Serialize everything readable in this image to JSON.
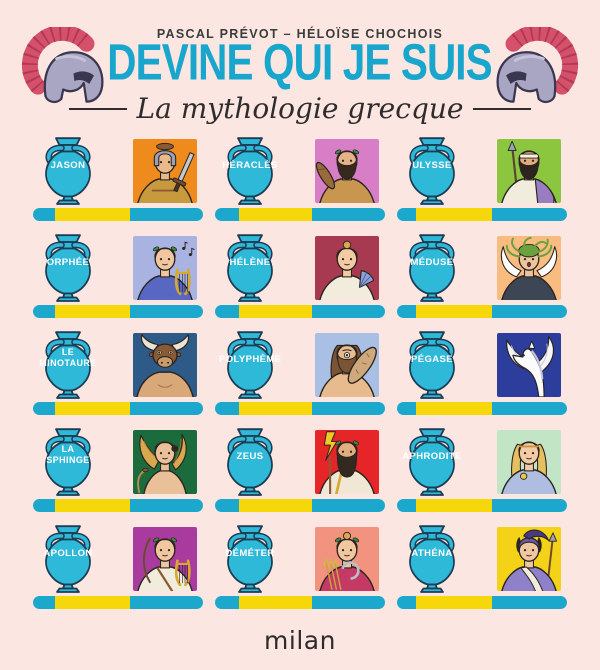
{
  "header": {
    "authors": "PASCAL PRÉVOT – HÉLOÏSE CHOCHOIS",
    "title": "DEVINE QUI JE SUIS",
    "subtitle": "La mythologie grecque",
    "left_helmet_icon": "corinthian-helmet",
    "right_helmet_icon": "corinthian-helmet"
  },
  "colors": {
    "background": "#fce6e2",
    "title_text": "#18a6cc",
    "authors_text": "#3b3b3b",
    "amphora_fill": "#2fb9d9",
    "amphora_outline": "#1d3b52",
    "amphora_label_text": "#ffffff",
    "bar_fill": "#1ba8cc",
    "bar_segment": "#f5d70a",
    "helmet_crest": "#d5506a",
    "helmet_metal": "#a8a6c2",
    "logo_text": "#2f2b2c"
  },
  "characters": [
    {
      "id": "jason",
      "name": "JASON",
      "portrait_bg": "#ef8b1c",
      "figure": "helmeted-warrior-with-sword"
    },
    {
      "id": "heracles",
      "name": "HÉRACLÈS",
      "portrait_bg": "#d77ec6",
      "figure": "bearded-hero-with-club-and-laurel"
    },
    {
      "id": "ulysse",
      "name": "ULYSSE",
      "portrait_bg": "#8cc63e",
      "figure": "bearded-traveler-with-spear-and-headband"
    },
    {
      "id": "orphee",
      "name": "ORPHÉE",
      "portrait_bg": "#a9b3e2",
      "figure": "musician-with-lyre-and-laurel"
    },
    {
      "id": "helene",
      "name": "HÉLÈNE",
      "portrait_bg": "#a73a50",
      "figure": "woman-with-fan"
    },
    {
      "id": "meduse",
      "name": "MÉDUSE",
      "portrait_bg": "#f8bc80",
      "figure": "snake-haired-gorgon-with-wings"
    },
    {
      "id": "minotaure",
      "name": "LE\nMINOTAURE",
      "portrait_bg": "#2e5a88",
      "figure": "bull-headed-man"
    },
    {
      "id": "polypheme",
      "name": "POLYPHÈME",
      "portrait_bg": "#a9c0e4",
      "figure": "one-eyed-cyclops-with-club"
    },
    {
      "id": "pegase",
      "name": "PÉGASE",
      "portrait_bg": "#2c3d9c",
      "figure": "winged-white-horse"
    },
    {
      "id": "sphinge",
      "name": "LA\nSPHINGE",
      "portrait_bg": "#1c6b3c",
      "figure": "winged-sphinx-woman"
    },
    {
      "id": "zeus",
      "name": "ZEUS",
      "portrait_bg": "#e52527",
      "figure": "bearded-god-with-lightning-scepter"
    },
    {
      "id": "aphrodite",
      "name": "APHRODITE",
      "portrait_bg": "#c2e5c6",
      "figure": "long-haired-goddess-with-golden-apple"
    },
    {
      "id": "apollon",
      "name": "APOLLON",
      "portrait_bg": "#a93a9e",
      "figure": "youth-with-lyre-and-bow"
    },
    {
      "id": "demeter",
      "name": "DÉMÉTER",
      "portrait_bg": "#f2937f",
      "figure": "goddess-with-wheat-and-sickle"
    },
    {
      "id": "athena",
      "name": "ATHÉNA",
      "portrait_bg": "#f4d218",
      "figure": "helmeted-goddess-with-spear"
    }
  ],
  "footer": {
    "logo": "milan"
  }
}
